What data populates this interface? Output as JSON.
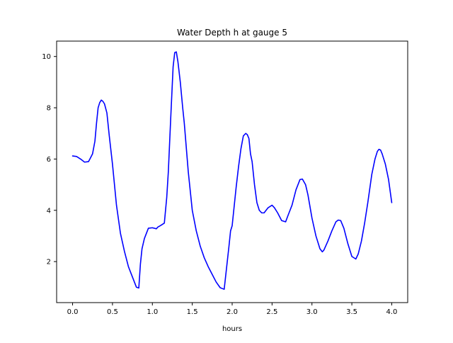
{
  "chart_data": {
    "type": "line",
    "title": "Water Depth h at gauge 5",
    "xlabel": "hours",
    "ylabel": "",
    "xlim": [
      -0.2,
      4.2
    ],
    "ylim": [
      0.4,
      10.6
    ],
    "x_ticks": [
      0.0,
      0.5,
      1.0,
      1.5,
      2.0,
      2.5,
      3.0,
      3.5,
      4.0
    ],
    "x_tick_labels": [
      "0.0",
      "0.5",
      "1.0",
      "1.5",
      "2.0",
      "2.5",
      "3.0",
      "3.5",
      "4.0"
    ],
    "y_ticks": [
      2,
      4,
      6,
      8,
      10
    ],
    "y_tick_labels": [
      "2",
      "4",
      "6",
      "8",
      "10"
    ],
    "grid": false,
    "legend": "none",
    "series": [
      {
        "color": "#0000ff",
        "x": [
          0.0,
          0.05,
          0.1,
          0.15,
          0.2,
          0.25,
          0.28,
          0.3,
          0.32,
          0.34,
          0.36,
          0.38,
          0.4,
          0.43,
          0.46,
          0.5,
          0.55,
          0.6,
          0.65,
          0.7,
          0.75,
          0.8,
          0.83,
          0.85,
          0.87,
          0.9,
          0.95,
          1.0,
          1.05,
          1.07,
          1.1,
          1.15,
          1.18,
          1.2,
          1.23,
          1.26,
          1.28,
          1.3,
          1.32,
          1.35,
          1.38,
          1.4,
          1.45,
          1.5,
          1.55,
          1.6,
          1.65,
          1.7,
          1.75,
          1.8,
          1.85,
          1.9,
          1.96,
          1.98,
          2.0,
          2.03,
          2.05,
          2.08,
          2.11,
          2.14,
          2.17,
          2.19,
          2.21,
          2.23,
          2.25,
          2.28,
          2.31,
          2.34,
          2.37,
          2.4,
          2.45,
          2.5,
          2.53,
          2.57,
          2.62,
          2.67,
          2.7,
          2.75,
          2.8,
          2.85,
          2.88,
          2.92,
          2.95,
          3.0,
          3.05,
          3.1,
          3.13,
          3.15,
          3.2,
          3.25,
          3.3,
          3.33,
          3.36,
          3.4,
          3.45,
          3.5,
          3.55,
          3.58,
          3.62,
          3.66,
          3.7,
          3.75,
          3.79,
          3.82,
          3.84,
          3.86,
          3.88,
          3.92,
          3.96,
          4.0
        ],
        "y": [
          6.12,
          6.1,
          6.0,
          5.88,
          5.9,
          6.2,
          6.7,
          7.4,
          8.0,
          8.2,
          8.3,
          8.25,
          8.15,
          7.8,
          6.9,
          5.8,
          4.2,
          3.1,
          2.4,
          1.8,
          1.4,
          1.0,
          0.97,
          1.9,
          2.5,
          2.9,
          3.3,
          3.32,
          3.28,
          3.35,
          3.4,
          3.5,
          4.5,
          5.5,
          7.6,
          9.6,
          10.15,
          10.18,
          9.8,
          9.0,
          8.0,
          7.4,
          5.5,
          4.0,
          3.2,
          2.6,
          2.15,
          1.8,
          1.5,
          1.2,
          0.98,
          0.92,
          2.6,
          3.2,
          3.4,
          4.3,
          4.9,
          5.7,
          6.4,
          6.9,
          7.0,
          6.95,
          6.8,
          6.2,
          5.9,
          5.0,
          4.3,
          4.0,
          3.9,
          3.9,
          4.1,
          4.2,
          4.1,
          3.9,
          3.6,
          3.55,
          3.8,
          4.2,
          4.8,
          5.2,
          5.22,
          5.0,
          4.6,
          3.7,
          3.0,
          2.5,
          2.38,
          2.45,
          2.8,
          3.2,
          3.55,
          3.62,
          3.6,
          3.3,
          2.7,
          2.2,
          2.1,
          2.3,
          2.8,
          3.5,
          4.3,
          5.4,
          6.0,
          6.3,
          6.38,
          6.35,
          6.2,
          5.8,
          5.2,
          4.3
        ]
      }
    ]
  }
}
